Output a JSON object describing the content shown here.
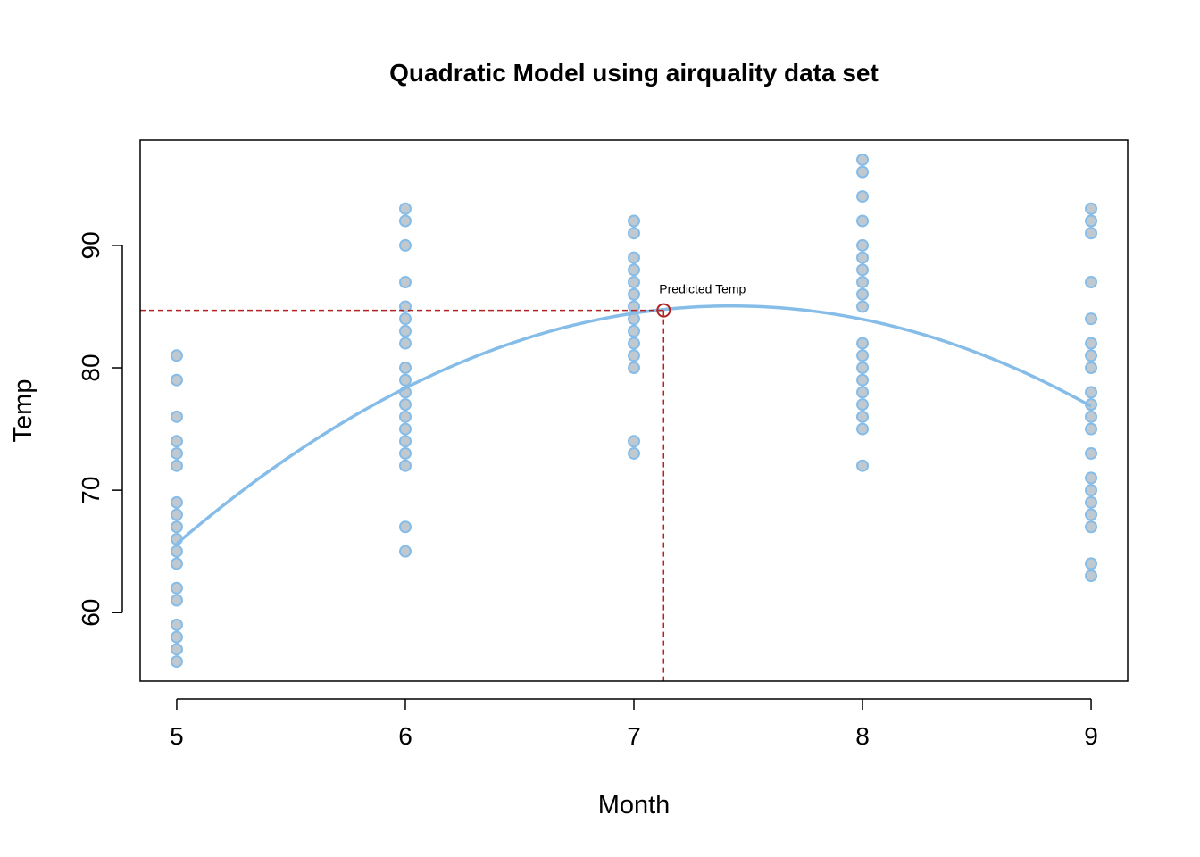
{
  "chart_data": {
    "type": "scatter",
    "title": "Quadratic Model using airquality data set",
    "xlabel": "Month",
    "ylabel": "Temp",
    "xlim": [
      4.84,
      9.16
    ],
    "ylim": [
      54.4,
      98.6
    ],
    "x_ticks": [
      5,
      6,
      7,
      8,
      9
    ],
    "y_ticks": [
      60,
      70,
      80,
      90
    ],
    "grid": false,
    "series": [
      {
        "marker_color": "#c0c8d0",
        "edge_color": "#86bde8",
        "points": [
          {
            "x": 5,
            "y": [
              81,
              79,
              76,
              74,
              73,
              72,
              69,
              68,
              67,
              66,
              65,
              64,
              62,
              61,
              59,
              58,
              57,
              56
            ]
          },
          {
            "x": 6,
            "y": [
              93,
              92,
              90,
              87,
              85,
              84,
              83,
              82,
              80,
              79,
              78,
              77,
              76,
              75,
              74,
              73,
              72,
              67,
              65
            ]
          },
          {
            "x": 7,
            "y": [
              92,
              91,
              89,
              88,
              87,
              86,
              85,
              84,
              83,
              82,
              81,
              80,
              74,
              73
            ]
          },
          {
            "x": 8,
            "y": [
              97,
              96,
              94,
              92,
              90,
              89,
              88,
              87,
              86,
              85,
              82,
              81,
              80,
              79,
              78,
              77,
              76,
              75,
              72
            ]
          },
          {
            "x": 9,
            "y": [
              93,
              92,
              91,
              87,
              84,
              82,
              81,
              80,
              78,
              77,
              76,
              75,
              73,
              71,
              70,
              69,
              68,
              67,
              64,
              63
            ]
          }
        ]
      }
    ],
    "fitted_curve": {
      "color": "#86bde8",
      "x": [
        5,
        6,
        7,
        7.5,
        8,
        9
      ],
      "y": [
        65.6,
        78.4,
        84.5,
        85.0,
        83.9,
        76.9
      ]
    },
    "prediction": {
      "x": 7.13,
      "y": 84.7,
      "color": "#b22222",
      "label": "Predicted Temp"
    }
  }
}
